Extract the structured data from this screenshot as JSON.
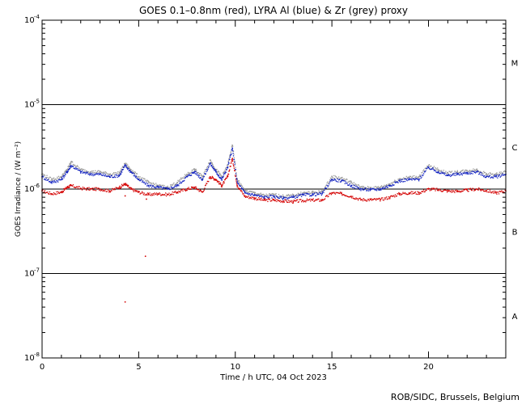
{
  "chart_data": {
    "type": "scatter",
    "title": "GOES 0.1–0.8nm (red), LYRA Al (blue) & Zr (grey) proxy",
    "xlabel": "Time / h UTC, 04 Oct 2023",
    "ylabel": "GOES Irradiance / (W m⁻²)",
    "credit": "ROB/SIDC, Brussels, Belgium",
    "xlim": [
      0,
      24
    ],
    "ylim": [
      1e-08,
      0.0001
    ],
    "yscale": "log",
    "x_ticks": [
      {
        "value": 0,
        "label": "0"
      },
      {
        "value": 5,
        "label": "5"
      },
      {
        "value": 10,
        "label": "10"
      },
      {
        "value": 15,
        "label": "15"
      },
      {
        "value": 20,
        "label": "20"
      }
    ],
    "y_ticks": [
      {
        "value": 1e-08,
        "base": "10",
        "exp": "-8"
      },
      {
        "value": 1e-07,
        "base": "10",
        "exp": "-7"
      },
      {
        "value": 1e-06,
        "base": "10",
        "exp": "-6"
      },
      {
        "value": 1e-05,
        "base": "10",
        "exp": "-5"
      },
      {
        "value": 0.0001,
        "base": "10",
        "exp": "-4"
      }
    ],
    "class_lines": [
      1e-07,
      1e-06,
      1e-05
    ],
    "flare_classes": [
      {
        "label": "A",
        "y": 3.16e-08
      },
      {
        "label": "B",
        "y": 3.16e-07
      },
      {
        "label": "C",
        "y": 3.16e-06
      },
      {
        "label": "M",
        "y": 3.16e-05
      }
    ],
    "series": [
      {
        "name": "GOES 0.1-0.8nm",
        "color": "#d40000",
        "x": [
          0.0,
          0.5,
          1.0,
          1.3,
          1.5,
          2.0,
          2.5,
          3.0,
          3.5,
          4.0,
          4.3,
          4.6,
          5.0,
          5.5,
          6.0,
          6.5,
          7.0,
          7.5,
          7.9,
          8.3,
          8.7,
          9.0,
          9.3,
          9.6,
          9.85,
          10.1,
          10.5,
          11.0,
          11.5,
          12.0,
          12.5,
          13.0,
          13.5,
          14.0,
          14.5,
          15.0,
          15.5,
          16.0,
          16.5,
          17.0,
          17.5,
          18.0,
          18.5,
          19.0,
          19.5,
          20.0,
          20.5,
          21.0,
          21.5,
          22.0,
          22.5,
          23.0,
          23.5,
          24.0
        ],
        "y": [
          9.5e-07,
          8.8e-07,
          9.2e-07,
          1.05e-06,
          1.1e-06,
          1.02e-06,
          1e-06,
          1e-06,
          9.5e-07,
          1.05e-06,
          1.15e-06,
          1e-06,
          9.2e-07,
          8.6e-07,
          8.8e-07,
          8.6e-07,
          9.2e-07,
          1e-06,
          1.05e-06,
          9.2e-07,
          1.4e-06,
          1.3e-06,
          1.1e-06,
          1.4e-06,
          2.3e-06,
          1.1e-06,
          8.2e-07,
          7.8e-07,
          7.4e-07,
          7.4e-07,
          7.2e-07,
          7.1e-07,
          7.3e-07,
          7.4e-07,
          7.4e-07,
          9e-07,
          8.8e-07,
          8.2e-07,
          7.5e-07,
          7.5e-07,
          7.5e-07,
          8e-07,
          8.8e-07,
          9e-07,
          9e-07,
          1e-06,
          9.8e-07,
          9.5e-07,
          9.4e-07,
          9.7e-07,
          1e-06,
          9.6e-07,
          9e-07,
          9.5e-07
        ]
      },
      {
        "name": "LYRA Al proxy",
        "color": "#1020c0",
        "x": [
          0.0,
          0.5,
          1.0,
          1.3,
          1.5,
          2.0,
          2.5,
          3.0,
          3.5,
          4.0,
          4.3,
          4.6,
          5.0,
          5.5,
          6.0,
          6.5,
          7.0,
          7.5,
          7.9,
          8.3,
          8.7,
          9.0,
          9.3,
          9.6,
          9.85,
          10.1,
          10.5,
          11.0,
          11.5,
          12.0,
          12.5,
          13.0,
          13.5,
          14.0,
          14.5,
          15.0,
          15.5,
          16.0,
          16.5,
          17.0,
          17.5,
          18.0,
          18.5,
          19.0,
          19.5,
          20.0,
          20.5,
          21.0,
          21.5,
          22.0,
          22.5,
          23.0,
          23.5,
          24.0
        ],
        "y": [
          1.4e-06,
          1.2e-06,
          1.3e-06,
          1.6e-06,
          1.9e-06,
          1.6e-06,
          1.5e-06,
          1.5e-06,
          1.4e-06,
          1.45e-06,
          1.9e-06,
          1.6e-06,
          1.3e-06,
          1.1e-06,
          1.05e-06,
          1e-06,
          1.1e-06,
          1.4e-06,
          1.6e-06,
          1.3e-06,
          2e-06,
          1.6e-06,
          1.3e-06,
          1.8e-06,
          3e-06,
          1.2e-06,
          9e-07,
          8.5e-07,
          8e-07,
          8.2e-07,
          7.8e-07,
          8e-07,
          8.5e-07,
          8.6e-07,
          8.8e-07,
          1.3e-06,
          1.25e-06,
          1.1e-06,
          1e-06,
          9.8e-07,
          1e-06,
          1.1e-06,
          1.25e-06,
          1.3e-06,
          1.3e-06,
          1.8e-06,
          1.6e-06,
          1.45e-06,
          1.5e-06,
          1.55e-06,
          1.6e-06,
          1.4e-06,
          1.4e-06,
          1.5e-06
        ]
      },
      {
        "name": "LYRA Zr proxy",
        "color": "#9a9a9a",
        "x": [
          0.0,
          0.5,
          1.0,
          1.3,
          1.5,
          2.0,
          2.5,
          3.0,
          3.5,
          4.0,
          4.3,
          4.6,
          5.0,
          5.5,
          6.0,
          6.5,
          7.0,
          7.5,
          7.9,
          8.3,
          8.7,
          9.0,
          9.3,
          9.6,
          9.85,
          10.1,
          10.5,
          11.0,
          11.5,
          12.0,
          12.5,
          13.0,
          13.5,
          14.0,
          14.5,
          15.0,
          15.5,
          16.0,
          16.5,
          17.0,
          17.5,
          18.0,
          18.5,
          19.0,
          19.5,
          20.0,
          20.5,
          21.0,
          21.5,
          22.0,
          22.5,
          23.0,
          23.5,
          24.0
        ],
        "y": [
          1.5e-06,
          1.3e-06,
          1.4e-06,
          1.7e-06,
          2.1e-06,
          1.7e-06,
          1.6e-06,
          1.6e-06,
          1.5e-06,
          1.55e-06,
          2e-06,
          1.7e-06,
          1.4e-06,
          1.2e-06,
          1.1e-06,
          1.05e-06,
          1.2e-06,
          1.5e-06,
          1.7e-06,
          1.4e-06,
          2.2e-06,
          1.7e-06,
          1.4e-06,
          1.9e-06,
          3.3e-06,
          1.3e-06,
          9.5e-07,
          9e-07,
          8.4e-07,
          8.6e-07,
          8.2e-07,
          8.4e-07,
          9e-07,
          9.1e-07,
          9.3e-07,
          1.4e-06,
          1.35e-06,
          1.2e-06,
          1.05e-06,
          1.03e-06,
          1.05e-06,
          1.15e-06,
          1.32e-06,
          1.38e-06,
          1.4e-06,
          1.9e-06,
          1.7e-06,
          1.55e-06,
          1.6e-06,
          1.65e-06,
          1.7e-06,
          1.5e-06,
          1.5e-06,
          1.6e-06
        ]
      }
    ],
    "outliers": [
      {
        "x": 4.3,
        "y": 8.3e-07
      },
      {
        "x": 5.4,
        "y": 7.6e-07
      },
      {
        "x": 5.35,
        "y": 1.6e-07
      },
      {
        "x": 4.3,
        "y": 4.6e-08
      }
    ]
  }
}
